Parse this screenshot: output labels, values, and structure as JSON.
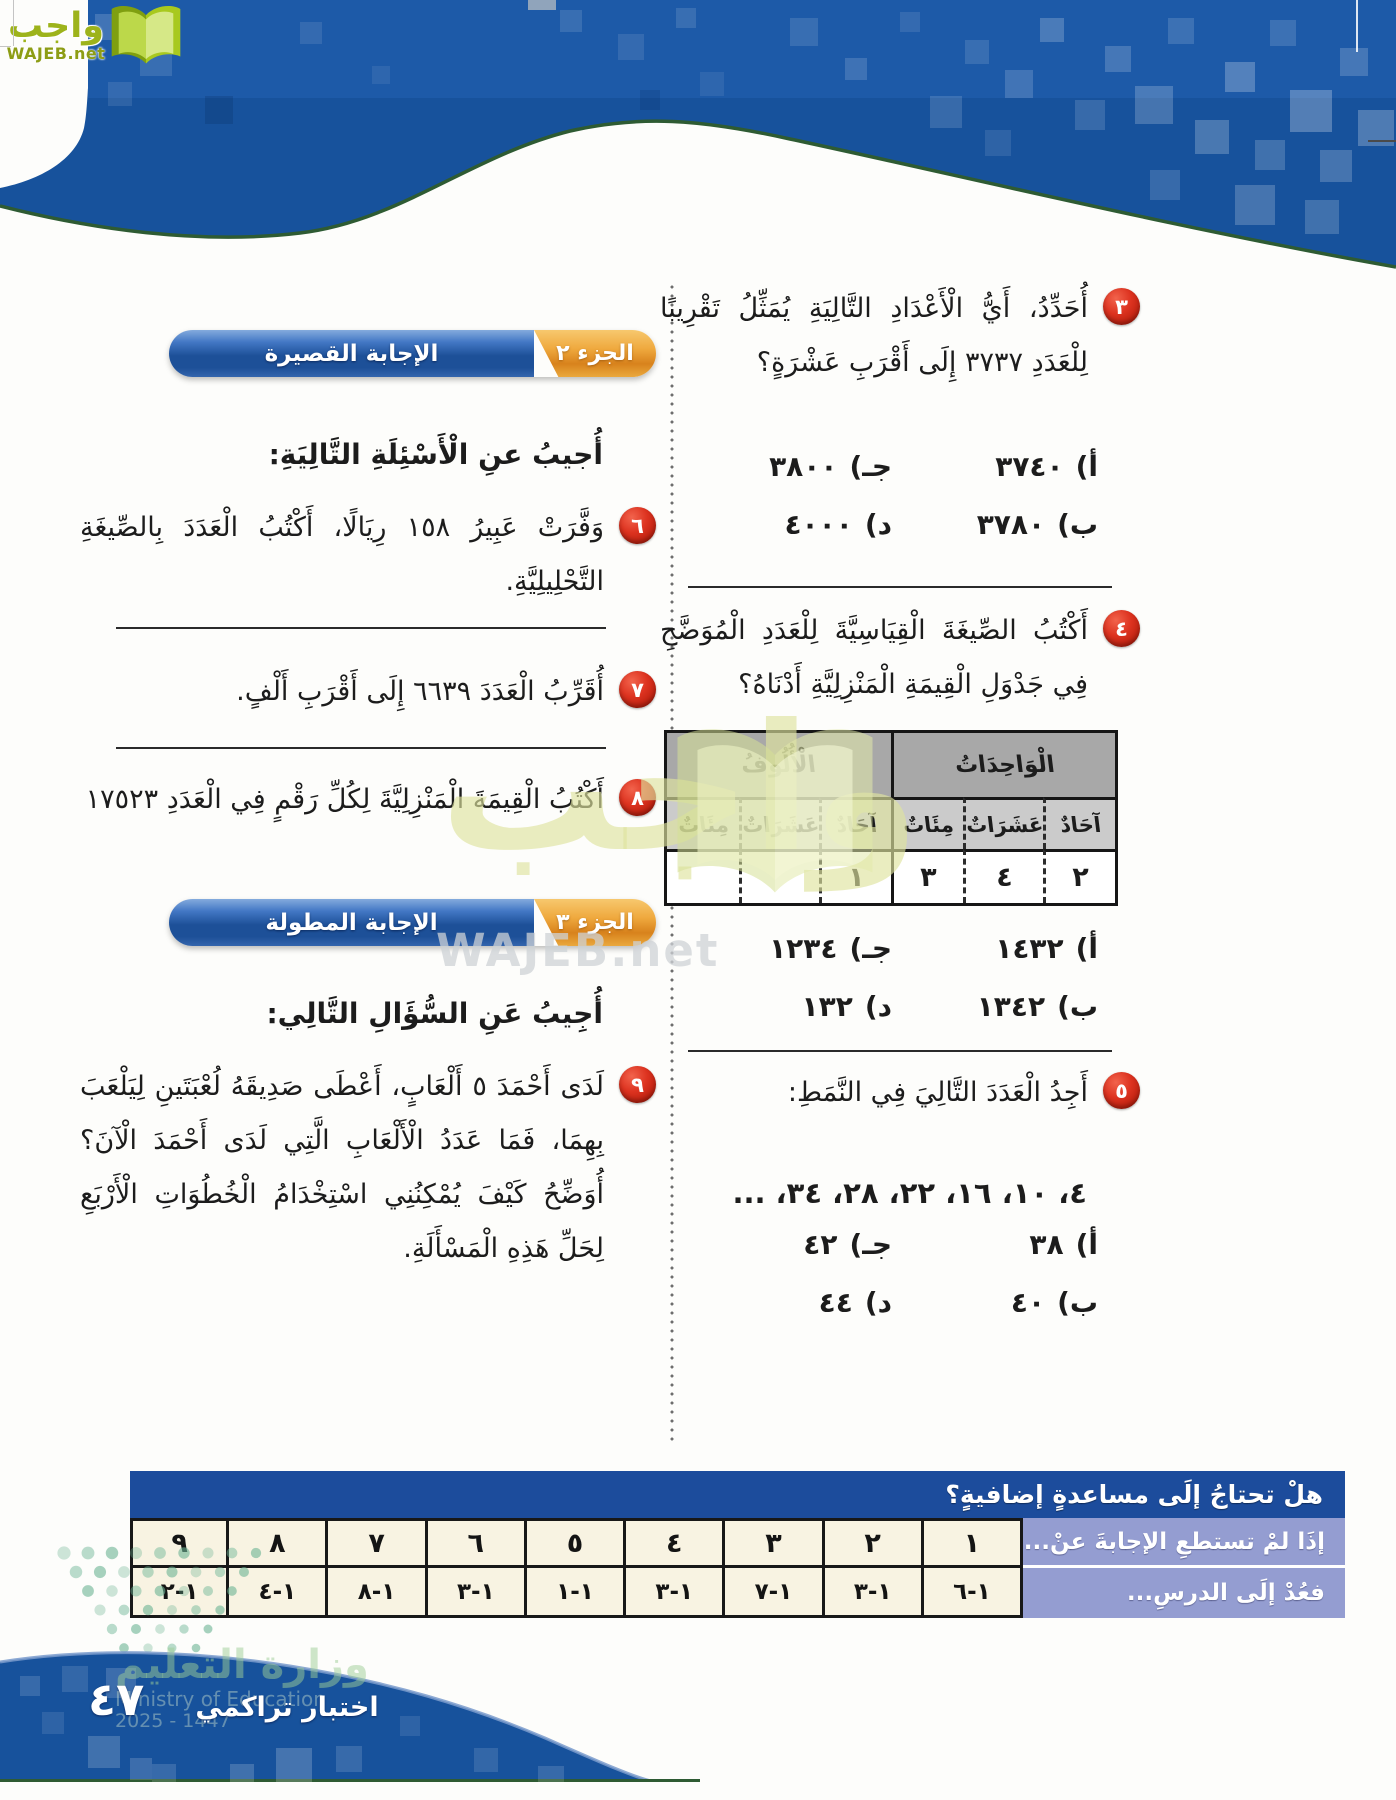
{
  "brand": {
    "logo_ar": "واجب",
    "logo_en": "WAJEB.net"
  },
  "watermark": {
    "text_ar": "واجب",
    "text_en": "WAJEB.net"
  },
  "sections": {
    "part2": {
      "part_label": "الجزء ٢",
      "title": "الإجابة القصيرة"
    },
    "part3": {
      "part_label": "الجزء ٣",
      "title": "الإجابة المطولة"
    },
    "intro_part2": "أُجيبُ عنِ الْأَسْئِلَةِ التَّالِيَةِ:",
    "intro_part3": "أُجِيبُ عَنِ السُّؤَالِ التَّالِي:"
  },
  "questions": {
    "q3": {
      "num": "٣",
      "text": "أُحَدِّدُ، أَيُّ الْأَعْدَادِ التَّالِيَةِ يُمَثِّلُ تَقْرِيبًا لِلْعَدَدِ ٣٧٣٧ إِلَى أَقْرَبِ عَشْرَةٍ؟",
      "options": [
        {
          "key": "أ)",
          "value": "٣٧٤٠"
        },
        {
          "key": "جـ)",
          "value": "٣٨٠٠"
        },
        {
          "key": "ب)",
          "value": "٣٧٨٠"
        },
        {
          "key": "د)",
          "value": "٤٠٠٠"
        }
      ]
    },
    "q4": {
      "num": "٤",
      "text": "أَكْتُبُ الصِّيغَةَ الْقِيَاسِيَّةَ لِلْعَدَدِ الْمُوَضَّحِ فِي جَدْوَلِ الْقِيمَةِ الْمَنْزِلِيَّةِ أَدْنَاهُ؟",
      "options": [
        {
          "key": "أ)",
          "value": "١٤٣٢"
        },
        {
          "key": "جـ)",
          "value": "١٢٣٤"
        },
        {
          "key": "ب)",
          "value": "١٣٤٢"
        },
        {
          "key": "د)",
          "value": "١٣٢"
        }
      ]
    },
    "q5": {
      "num": "٥",
      "text": "أَجِدُ الْعَدَدَ التَّالِيَ فِي النَّمَطِ:",
      "sequence": "٤، ١٠، ١٦، ٢٢، ٢٨، ٣٤، ...",
      "options": [
        {
          "key": "أ)",
          "value": "٣٨"
        },
        {
          "key": "جـ)",
          "value": "٤٢"
        },
        {
          "key": "ب)",
          "value": "٤٠"
        },
        {
          "key": "د)",
          "value": "٤٤"
        }
      ]
    },
    "q6": {
      "num": "٦",
      "text": "وَفَّرَتْ عَبِيرُ ١٥٨ رِيَالًا، أَكْتُبُ الْعَدَدَ بِالصِّيغَةِ التَّحْلِيلِيَّةِ."
    },
    "q7": {
      "num": "٧",
      "text": "أُقَرِّبُ الْعَدَدَ ٦٦٣٩ إِلَى أَقْرَبِ أَلْفٍ."
    },
    "q8": {
      "num": "٨",
      "text": "أَكْتُبُ الْقِيمَةَ الْمَنْزِلِيَّةَ لِكُلِّ رَقْمٍ فِي الْعَدَدِ ١٧٥٢٣"
    },
    "q9": {
      "num": "٩",
      "text": "لَدَى أَحْمَدَ ٥ أَلْعَابٍ، أَعْطَى صَدِيقَهُ لُعْبَتَينِ لِيَلْعَبَ بِهِمَا، فَمَا عَدَدُ الْأَلْعَابِ الَّتِي لَدَى أَحْمَدَ الْآنَ؟ أُوَضِّحُ كَيْفَ يُمْكِنُنِي اسْتِخْدَامُ الْخُطُوَاتِ الْأَرْبَعِ لِحَلِّ هَذِهِ الْمَسْأَلَةِ."
    }
  },
  "place_value_table": {
    "group_units": "الْوَاحِدَاتُ",
    "group_thousands": "الْأُلُوفُ",
    "cols_units": [
      "آحَادٌ",
      "عَشَرَاتٌ",
      "مِئَاتٌ"
    ],
    "cols_thousands": [
      "آحَادٌ",
      "عَشَرَاتٌ",
      "مِئَاتٌ"
    ],
    "row_units": [
      "٢",
      "٤",
      "٣"
    ],
    "row_thousands": [
      "١",
      "",
      ""
    ]
  },
  "help_table": {
    "title": "هلْ تحتاجُ إلَى مساعدةٍ إضافيةٍ؟",
    "row_questions_label": "إذَا لمْ تستطعِ الإجابةَ عنْ...",
    "row_lessons_label": "فعُدْ إلَى الدرسِ...",
    "questions": [
      "١",
      "٢",
      "٣",
      "٤",
      "٥",
      "٦",
      "٧",
      "٨",
      "٩"
    ],
    "lessons": [
      "١-٦",
      "١-٣",
      "١-٧",
      "١-٣",
      "١-١",
      "١-٣",
      "١-٨",
      "١-٤",
      "١-٢"
    ]
  },
  "footer": {
    "label": "اختبار تراكمي",
    "page_number": "٤٧",
    "ministry_ar": "وزارة التعليم",
    "ministry_en": "Ministry of Education",
    "edition": "2025 - 1447"
  },
  "colors": {
    "header_blue": "#17549f",
    "accent_orange": "#e8992d",
    "badge_red": "#cf2b17",
    "help_header_blue": "#1c4c9c",
    "help_label_purple": "#949dd1",
    "cream": "#f8f3e2",
    "edge_green": "#2e5b33"
  }
}
